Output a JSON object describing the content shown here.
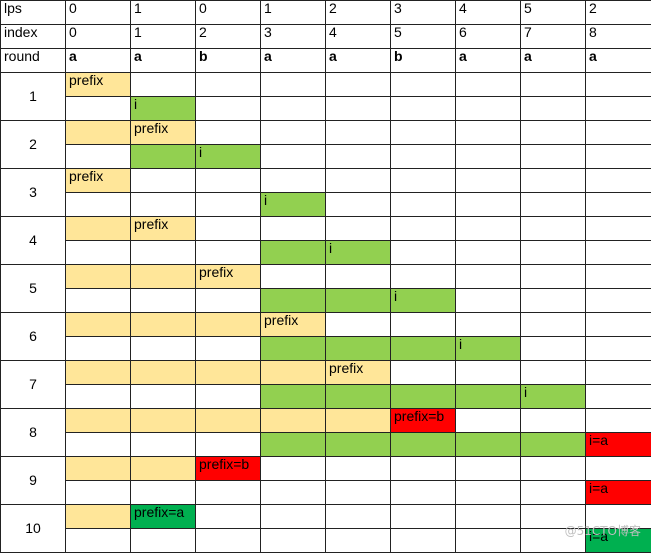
{
  "header_rows": [
    {
      "label": "lps",
      "cells": [
        "0",
        "1",
        "0",
        "1",
        "2",
        "3",
        "4",
        "5",
        "2"
      ]
    },
    {
      "label": "index",
      "cells": [
        "0",
        "1",
        "2",
        "3",
        "4",
        "5",
        "6",
        "7",
        "8"
      ]
    },
    {
      "label": "round",
      "cells": [
        "a",
        "a",
        "b",
        "a",
        "a",
        "b",
        "a",
        "a",
        "a"
      ]
    }
  ],
  "rounds": [
    {
      "num": "1",
      "prefix": {
        "fill": [
          "y",
          "",
          "",
          "",
          "",
          "",
          "",
          "",
          ""
        ],
        "text": [
          "prefix",
          "",
          "",
          "",
          "",
          "",
          "",
          "",
          ""
        ]
      },
      "i": {
        "fill": [
          "",
          "g",
          "",
          "",
          "",
          "",
          "",
          "",
          ""
        ],
        "text": [
          "",
          "i",
          "",
          "",
          "",
          "",
          "",
          "",
          ""
        ]
      }
    },
    {
      "num": "2",
      "prefix": {
        "fill": [
          "y",
          "y",
          "",
          "",
          "",
          "",
          "",
          "",
          ""
        ],
        "text": [
          "",
          "prefix",
          "",
          "",
          "",
          "",
          "",
          "",
          ""
        ]
      },
      "i": {
        "fill": [
          "",
          "g",
          "g",
          "",
          "",
          "",
          "",
          "",
          ""
        ],
        "text": [
          "",
          "",
          "i",
          "",
          "",
          "",
          "",
          "",
          ""
        ]
      }
    },
    {
      "num": "3",
      "prefix": {
        "fill": [
          "y",
          "",
          "",
          "",
          "",
          "",
          "",
          "",
          ""
        ],
        "text": [
          "prefix",
          "",
          "",
          "",
          "",
          "",
          "",
          "",
          ""
        ]
      },
      "i": {
        "fill": [
          "",
          "",
          "",
          "g",
          "",
          "",
          "",
          "",
          ""
        ],
        "text": [
          "",
          "",
          "",
          "i",
          "",
          "",
          "",
          "",
          ""
        ]
      }
    },
    {
      "num": "4",
      "prefix": {
        "fill": [
          "y",
          "y",
          "",
          "",
          "",
          "",
          "",
          "",
          ""
        ],
        "text": [
          "",
          "prefix",
          "",
          "",
          "",
          "",
          "",
          "",
          ""
        ]
      },
      "i": {
        "fill": [
          "",
          "",
          "",
          "g",
          "g",
          "",
          "",
          "",
          ""
        ],
        "text": [
          "",
          "",
          "",
          "",
          "i",
          "",
          "",
          "",
          ""
        ]
      }
    },
    {
      "num": "5",
      "prefix": {
        "fill": [
          "y",
          "y",
          "y",
          "",
          "",
          "",
          "",
          "",
          ""
        ],
        "text": [
          "",
          "",
          "prefix",
          "",
          "",
          "",
          "",
          "",
          ""
        ]
      },
      "i": {
        "fill": [
          "",
          "",
          "",
          "g",
          "g",
          "g",
          "",
          "",
          ""
        ],
        "text": [
          "",
          "",
          "",
          "",
          "",
          "i",
          "",
          "",
          ""
        ]
      }
    },
    {
      "num": "6",
      "prefix": {
        "fill": [
          "y",
          "y",
          "y",
          "y",
          "",
          "",
          "",
          "",
          ""
        ],
        "text": [
          "",
          "",
          "",
          "prefix",
          "",
          "",
          "",
          "",
          ""
        ]
      },
      "i": {
        "fill": [
          "",
          "",
          "",
          "g",
          "g",
          "g",
          "g",
          "",
          ""
        ],
        "text": [
          "",
          "",
          "",
          "",
          "",
          "",
          "i",
          "",
          ""
        ]
      }
    },
    {
      "num": "7",
      "prefix": {
        "fill": [
          "y",
          "y",
          "y",
          "y",
          "y",
          "",
          "",
          "",
          ""
        ],
        "text": [
          "",
          "",
          "",
          "",
          "prefix",
          "",
          "",
          "",
          ""
        ]
      },
      "i": {
        "fill": [
          "",
          "",
          "",
          "g",
          "g",
          "g",
          "g",
          "g",
          ""
        ],
        "text": [
          "",
          "",
          "",
          "",
          "",
          "",
          "",
          "i",
          ""
        ]
      }
    },
    {
      "num": "8",
      "prefix": {
        "fill": [
          "y",
          "y",
          "y",
          "y",
          "y",
          "r",
          "",
          "",
          ""
        ],
        "text": [
          "",
          "",
          "",
          "",
          "",
          "prefix=b",
          "",
          "",
          ""
        ]
      },
      "i": {
        "fill": [
          "",
          "",
          "",
          "g",
          "g",
          "g",
          "g",
          "g",
          "r"
        ],
        "text": [
          "",
          "",
          "",
          "",
          "",
          "",
          "",
          "",
          "i=a"
        ]
      }
    },
    {
      "num": "9",
      "prefix": {
        "fill": [
          "y",
          "y",
          "r",
          "",
          "",
          "",
          "",
          "",
          ""
        ],
        "text": [
          "",
          "",
          "prefix=b",
          "",
          "",
          "",
          "",
          "",
          ""
        ]
      },
      "i": {
        "fill": [
          "",
          "",
          "",
          "",
          "",
          "",
          "",
          "",
          "r"
        ],
        "text": [
          "",
          "",
          "",
          "",
          "",
          "",
          "",
          "",
          "i=a"
        ]
      }
    },
    {
      "num": "10",
      "prefix": {
        "fill": [
          "y",
          "dg",
          "",
          "",
          "",
          "",
          "",
          "",
          ""
        ],
        "text": [
          "",
          "prefix=a",
          "",
          "",
          "",
          "",
          "",
          "",
          ""
        ]
      },
      "i": {
        "fill": [
          "",
          "",
          "",
          "",
          "",
          "",
          "",
          "",
          "dg"
        ],
        "text": [
          "",
          "",
          "",
          "",
          "",
          "",
          "",
          "",
          "i=a"
        ]
      }
    }
  ],
  "watermark": "@51CTO博客",
  "colors": {
    "prefix": "#ffe699",
    "i": "#92d050",
    "mismatch": "#ff0000",
    "match": "#00b050"
  }
}
